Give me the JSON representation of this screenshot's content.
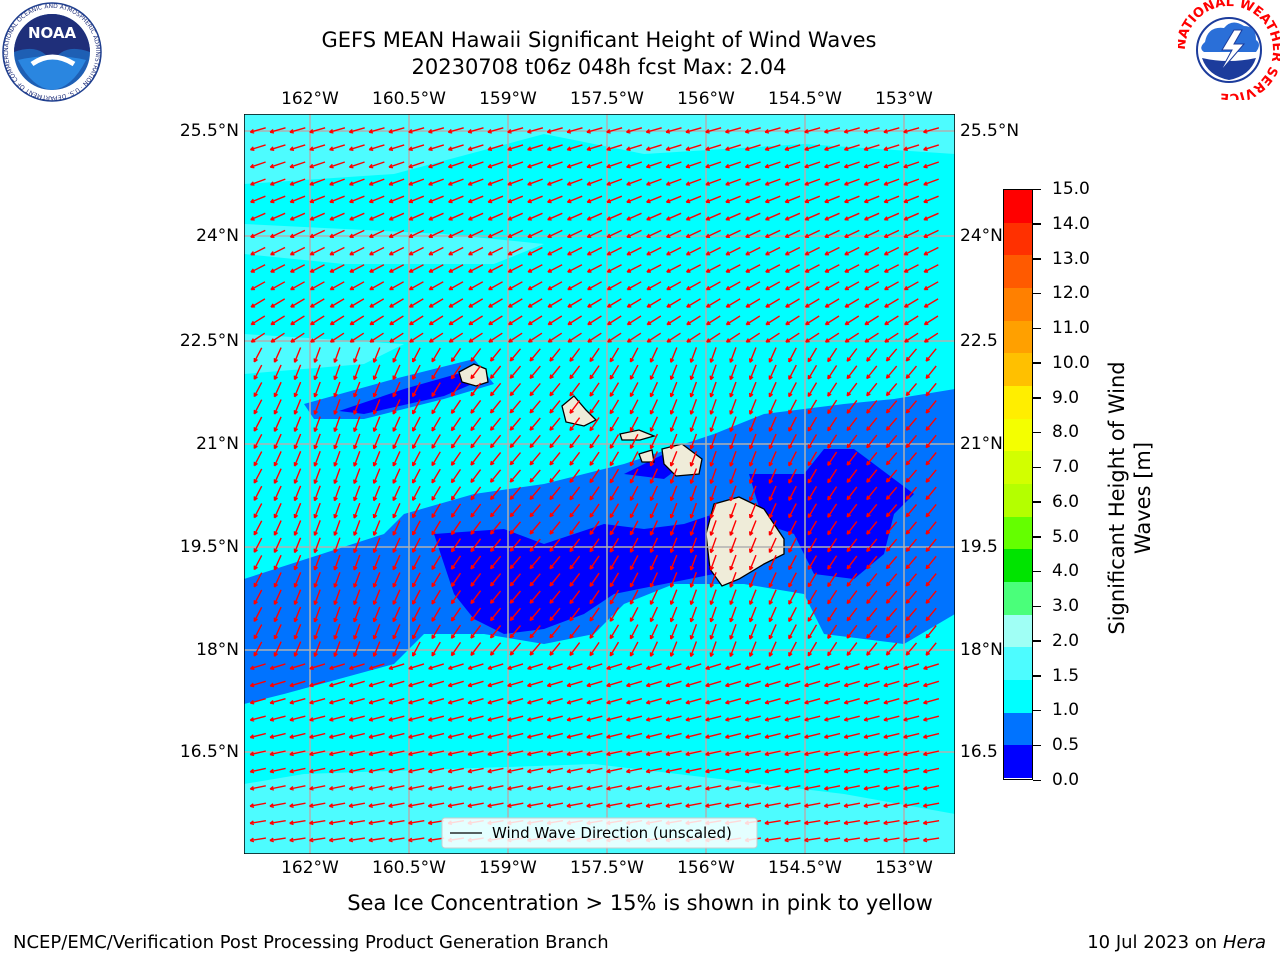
{
  "title_line1": "GEFS MEAN Hawaii Significant Height of Wind Waves",
  "title_line2": "20230708 t06z 048h fcst   Max: 2.04",
  "lon_ticks": [
    "162°W",
    "160.5°W",
    "159°W",
    "157.5°W",
    "156°W",
    "154.5°W",
    "153°W"
  ],
  "lat_ticks": [
    "25.5°N",
    "24°N",
    "22.5°N",
    "21°N",
    "19.5°N",
    "18°N",
    "16.5°N"
  ],
  "lat_ticks_right": [
    "25.5°N",
    "24°N",
    "22.5",
    "21°N",
    "19.5",
    "18°N",
    "16.5"
  ],
  "legend_label": "Wind Wave Direction (unscaled)",
  "colorbar": {
    "title_line1": "Significant Height of Wind",
    "title_line2": "Waves [m]",
    "levels": [
      "15.0",
      "14.0",
      "13.0",
      "12.0",
      "11.0",
      "10.0",
      "9.0",
      "8.0",
      "7.0",
      "6.0",
      "5.0",
      "4.0",
      "3.0",
      "2.0",
      "1.5",
      "1.0",
      "0.5",
      "0.0"
    ],
    "colors": [
      "#ff0000",
      "#ff3000",
      "#ff5a00",
      "#ff8000",
      "#ffa000",
      "#ffc000",
      "#ffee00",
      "#f4ff00",
      "#d2ff00",
      "#b4ff00",
      "#64ff00",
      "#00e400",
      "#4aff7a",
      "#a0fff5",
      "#4dfcff",
      "#00ffff",
      "#0073ff",
      "#0000ff"
    ]
  },
  "ice_note": "Sea Ice Concentration > 15% is shown in pink to yellow",
  "footer_left": "NCEP/EMC/Verification Post Processing Product Generation Branch",
  "footer_right_prefix": "10 Jul 2023 on ",
  "footer_right_host": "Hera",
  "logo_left": "NOAA",
  "logo_left_ring": "NATIONAL OCEANIC AND ATMOSPHERIC ADMINISTRATION · U.S. DEPARTMENT OF COMMERCE",
  "logo_right_ring": "NATIONAL WEATHER SERVICE"
}
